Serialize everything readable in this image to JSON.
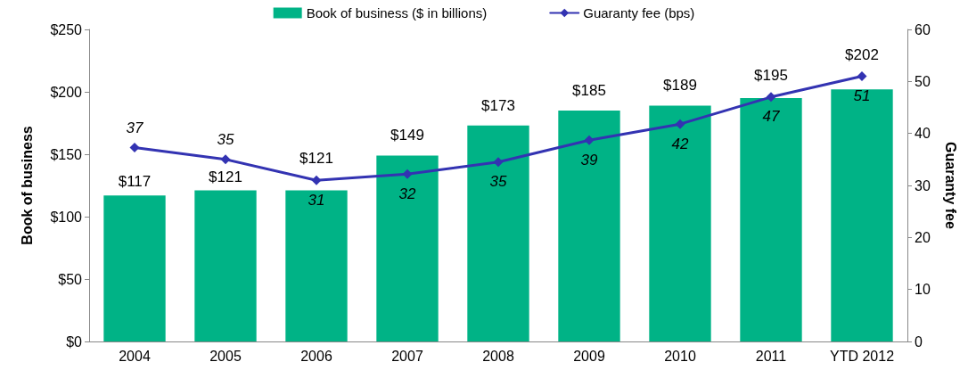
{
  "chart_data": {
    "type": "bar",
    "categories": [
      "2004",
      "2005",
      "2006",
      "2007",
      "2008",
      "2009",
      "2010",
      "2011",
      "YTD 2012"
    ],
    "ylabel": "Book of business",
    "y2label": "Guaranty fee",
    "series": [
      {
        "name": "Book of business ($ in billions)",
        "type": "bar",
        "color": "#00b386",
        "values": [
          117,
          121,
          121,
          149,
          173,
          185,
          189,
          195,
          202
        ],
        "value_labels": [
          "$117",
          "$121",
          "$121",
          "$149",
          "$173",
          "$185",
          "$189",
          "$195",
          "$202"
        ]
      },
      {
        "name": "Guaranty fee (bps)",
        "type": "line",
        "axis": "y2",
        "color": "#3333b2",
        "marker": "diamond",
        "values": [
          37.3,
          35,
          31,
          32.2,
          34.5,
          38.7,
          41.8,
          47,
          51
        ],
        "value_labels": [
          "37",
          "35",
          "31",
          "32",
          "35",
          "39",
          "42",
          "47",
          "51"
        ]
      }
    ],
    "ylim": [
      0,
      250
    ],
    "yticks": [
      {
        "value": 0,
        "label": "$0"
      },
      {
        "value": 50,
        "label": "$50"
      },
      {
        "value": 100,
        "label": "$100"
      },
      {
        "value": 150,
        "label": "$150"
      },
      {
        "value": 200,
        "label": "$200"
      },
      {
        "value": 250,
        "label": "$250"
      }
    ],
    "y2lim": [
      0,
      60
    ],
    "y2ticks": [
      0,
      10,
      20,
      30,
      40,
      50,
      60
    ],
    "grid": false,
    "legend": "top"
  }
}
